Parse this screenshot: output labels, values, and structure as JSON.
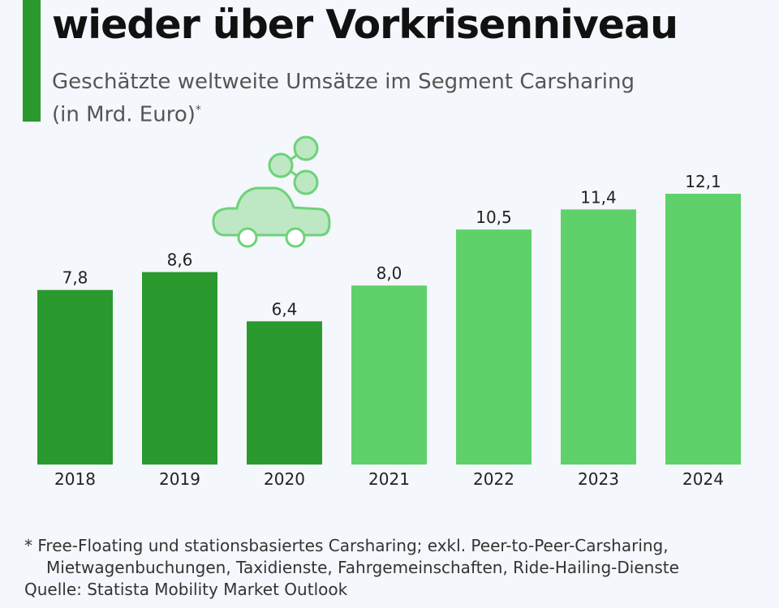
{
  "title": "wieder über Vorkrisenniveau",
  "subtitle": "Geschätzte weltweite Umsätze im Segment Carsharing",
  "unit": "(in Mrd. Euro)",
  "unit_mark": "*",
  "colors": {
    "accent": "#2a9a2e",
    "historic": "#2a9a2e",
    "forecast": "#5fd16a",
    "icon_fill": "#bde8c3",
    "icon_stroke": "#6ed27a"
  },
  "icon": "car-sharing-icon",
  "chart_data": {
    "type": "bar",
    "categories": [
      "2018",
      "2019",
      "2020",
      "2021",
      "2022",
      "2023",
      "2024"
    ],
    "values": [
      7.8,
      8.6,
      6.4,
      8.0,
      10.5,
      11.4,
      12.1
    ],
    "data_labels": [
      "7,8",
      "8,6",
      "6,4",
      "8,0",
      "10,5",
      "11,4",
      "12,1"
    ],
    "bar_colors": [
      "#2a9a2e",
      "#2a9a2e",
      "#2a9a2e",
      "#5fd16a",
      "#5fd16a",
      "#5fd16a",
      "#5fd16a"
    ],
    "ylim": [
      0,
      12.1
    ],
    "grid": false,
    "title": "",
    "xlabel": "",
    "ylabel": ""
  },
  "footnote": {
    "line1": "* Free-Floating und stationsbasiertes Carsharing; exkl. Peer-to-Peer-Carsharing,",
    "line2": "Mietwagenbuchungen, Taxidienste, Fahrgemeinschaften, Ride-Hailing-Dienste",
    "source": "Quelle: Statista Mobility Market Outlook"
  }
}
